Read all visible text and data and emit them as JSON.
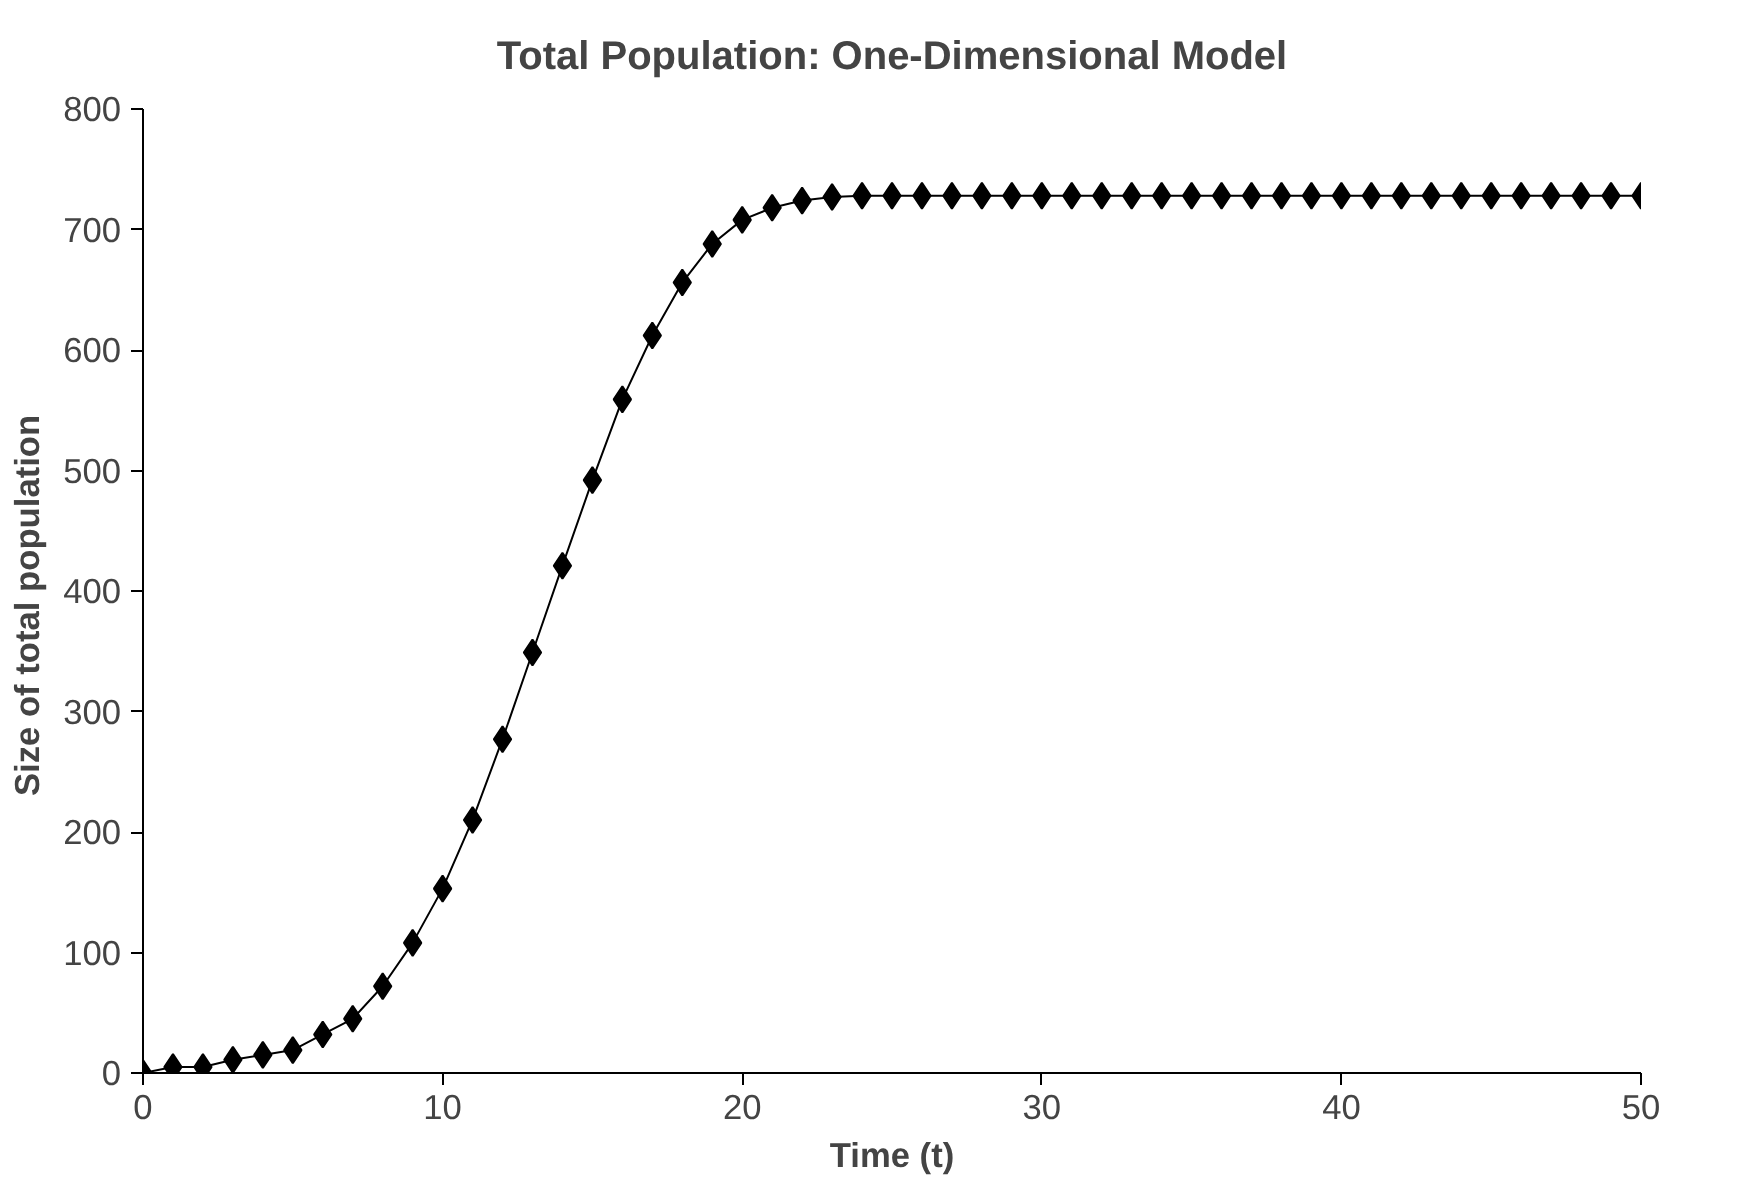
{
  "chart_data": {
    "type": "line",
    "title": "Total Population: One-Dimensional Model",
    "xlabel": "Time (t)",
    "ylabel": "Size  of  total  population",
    "x": [
      0,
      1,
      2,
      3,
      4,
      5,
      6,
      7,
      8,
      9,
      10,
      11,
      12,
      13,
      14,
      15,
      16,
      17,
      18,
      19,
      20,
      21,
      22,
      23,
      24,
      25,
      26,
      27,
      28,
      29,
      30,
      31,
      32,
      33,
      34,
      35,
      36,
      37,
      38,
      39,
      40,
      41,
      42,
      43,
      44,
      45,
      46,
      47,
      48,
      49,
      50
    ],
    "series": [
      {
        "color": "#000000",
        "values": [
          0,
          5,
          5,
          11,
          15,
          19,
          32,
          45,
          72,
          108,
          153,
          210,
          277,
          349,
          421,
          492,
          559,
          612,
          656,
          688,
          708,
          718,
          724,
          727,
          728,
          728,
          728,
          728,
          728,
          728,
          728,
          728,
          728,
          728,
          728,
          728,
          728,
          728,
          728,
          728,
          728,
          728,
          728,
          728,
          728,
          728,
          728,
          728,
          728,
          728,
          728
        ]
      }
    ],
    "xlim": [
      0,
      50
    ],
    "ylim": [
      0,
      800
    ],
    "xticks": [
      0,
      10,
      20,
      30,
      40,
      50
    ],
    "yticks": [
      0,
      100,
      200,
      300,
      400,
      500,
      600,
      700,
      800
    ],
    "grid": false,
    "marker": "diamond",
    "line_style": "solid"
  }
}
